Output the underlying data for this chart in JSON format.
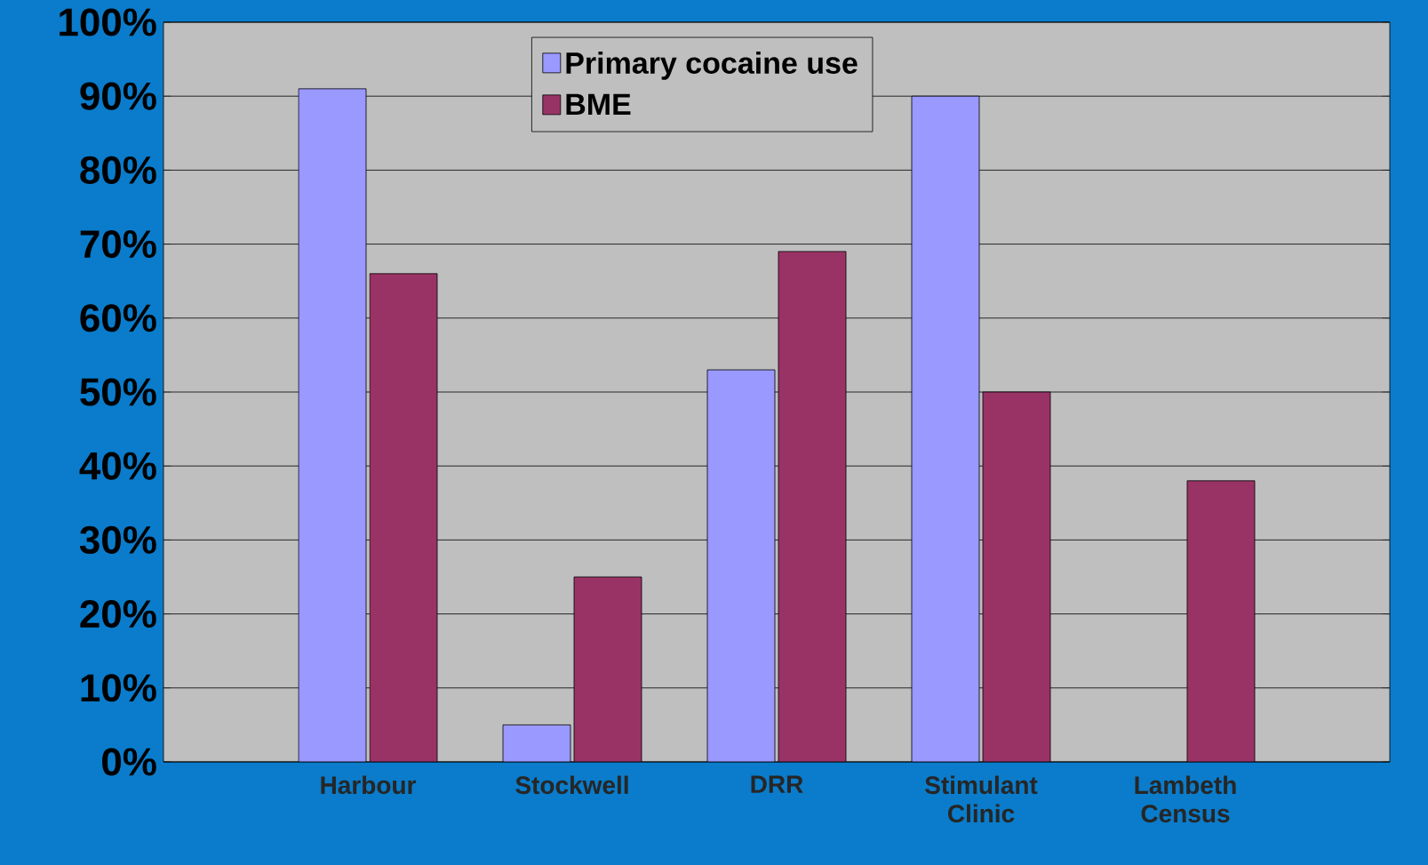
{
  "chart_data": {
    "type": "bar",
    "categories": [
      "Harbour",
      "Stockwell",
      "DRR",
      "Stimulant Clinic",
      "Lambeth Census"
    ],
    "series": [
      {
        "name": "Primary cocaine use",
        "color": "#9999ff",
        "values": [
          91,
          5,
          53,
          90,
          null
        ]
      },
      {
        "name": "BME",
        "color": "#993366",
        "values": [
          66,
          25,
          69,
          50,
          38
        ]
      }
    ],
    "ylim": [
      0,
      100
    ],
    "yticks": [
      {
        "value": 0,
        "label": "0%"
      },
      {
        "value": 10,
        "label": "10%"
      },
      {
        "value": 20,
        "label": "20%"
      },
      {
        "value": 30,
        "label": "30%"
      },
      {
        "value": 40,
        "label": "40%"
      },
      {
        "value": 50,
        "label": "50%"
      },
      {
        "value": 60,
        "label": "60%"
      },
      {
        "value": 70,
        "label": "70%"
      },
      {
        "value": 80,
        "label": "80%"
      },
      {
        "value": 90,
        "label": "90%"
      },
      {
        "value": 100,
        "label": "100%"
      }
    ],
    "grid": "y",
    "legend": "top left"
  }
}
